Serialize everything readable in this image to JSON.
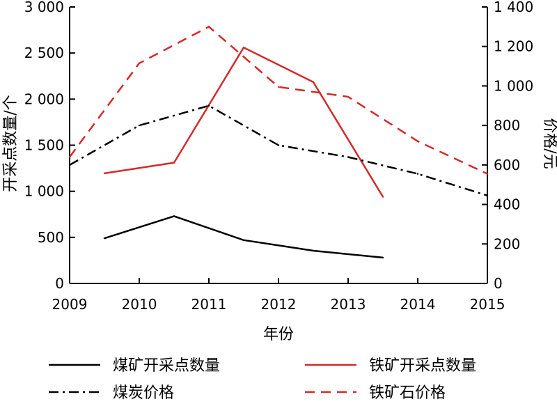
{
  "chart_data": {
    "type": "line",
    "xlabel": "年份",
    "ylabel_left": "开采点数量/个",
    "ylabel_right": "价格/元",
    "x_ticks": [
      "2009",
      "2010",
      "2011",
      "2012",
      "2013",
      "2014",
      "2015"
    ],
    "y_left": {
      "min": 0,
      "max": 3000,
      "ticks": [
        0,
        500,
        1000,
        1500,
        2000,
        2500,
        3000
      ],
      "tick_labels": [
        "0",
        "500",
        "1 000",
        "1 500",
        "2 000",
        "2 500",
        "3 000"
      ]
    },
    "y_right": {
      "min": 0,
      "max": 1400,
      "ticks": [
        0,
        200,
        400,
        600,
        800,
        1000,
        1200,
        1400
      ],
      "tick_labels": [
        "0",
        "200",
        "400",
        "600",
        "800",
        "1 000",
        "1 200",
        "1 400"
      ]
    },
    "series": [
      {
        "name": "煤矿开采点数量",
        "axis": "left",
        "color": "#000000",
        "dash": "solid",
        "x": [
          2009.5,
          2010.5,
          2011.5,
          2012.5,
          2013.5
        ],
        "values": [
          490,
          730,
          470,
          355,
          280
        ]
      },
      {
        "name": "铁矿开采点数量",
        "axis": "left",
        "color": "#d42a2a",
        "dash": "solid",
        "x": [
          2009.5,
          2010.5,
          2011.5,
          2012.5,
          2013.5
        ],
        "values": [
          1195,
          1310,
          2560,
          2185,
          940
        ]
      },
      {
        "name": "煤炭价格",
        "axis": "right",
        "color": "#000000",
        "dash": "dashdot",
        "x": [
          2009,
          2010,
          2011,
          2012,
          2013,
          2014,
          2015
        ],
        "values": [
          600,
          800,
          900,
          700,
          640,
          555,
          445
        ]
      },
      {
        "name": "铁矿石价格",
        "axis": "right",
        "color": "#d42a2a",
        "dash": "dashed",
        "x": [
          2009,
          2010,
          2011,
          2012,
          2013,
          2014,
          2015
        ],
        "values": [
          640,
          1115,
          1300,
          995,
          945,
          720,
          555
        ]
      }
    ],
    "legend_position": "bottom",
    "grid": false
  }
}
